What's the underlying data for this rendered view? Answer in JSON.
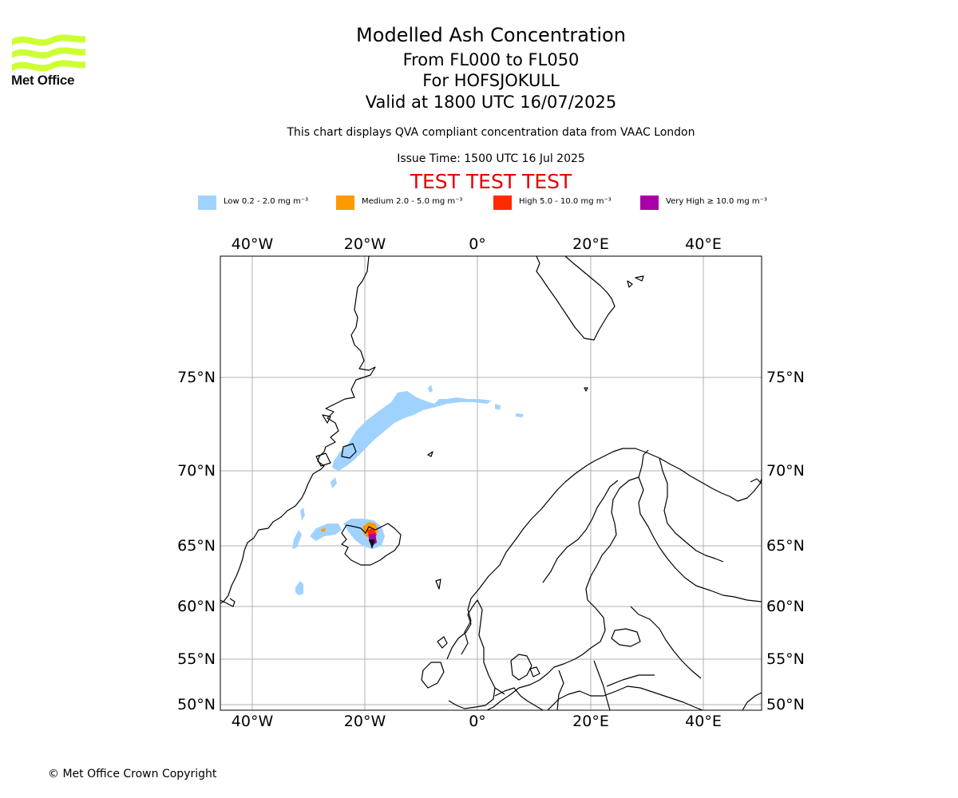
{
  "brand": {
    "logo_text": "Met Office",
    "logo_color": "#ccff33"
  },
  "header": {
    "title": "Modelled Ash Concentration",
    "level_range": "From FL000 to FL050",
    "location": "For HOFSJOKULL",
    "valid_time": "Valid at 1800 UTC 16/07/2025",
    "description": "This chart displays QVA compliant concentration data from VAAC London",
    "issue_time": "Issue Time: 1500 UTC 16 Jul 2025",
    "test_banner": "TEST TEST TEST",
    "test_banner_color": "#e60000"
  },
  "legend": [
    {
      "label": "Low 0.2 - 2.0 mg m⁻³",
      "color": "#a0d2ff"
    },
    {
      "label": "Medium 2.0 - 5.0 mg m⁻³",
      "color": "#ff9900"
    },
    {
      "label": "High 5.0 - 10.0 mg m⁻³",
      "color": "#ff2a00"
    },
    {
      "label": "Very High  ≥  10.0 mg m⁻³",
      "color": "#aa00aa"
    }
  ],
  "map": {
    "projection": "polar-stereographic style",
    "gridlines": true,
    "lon_labels": [
      "40°W",
      "20°W",
      "0°",
      "20°E",
      "40°E"
    ],
    "lat_labels": [
      "75°N",
      "70°N",
      "65°N",
      "60°N",
      "55°N",
      "50°N"
    ],
    "volcano": "HOFSJOKULL"
  },
  "footer": {
    "copyright": "© Met Office Crown Copyright"
  }
}
